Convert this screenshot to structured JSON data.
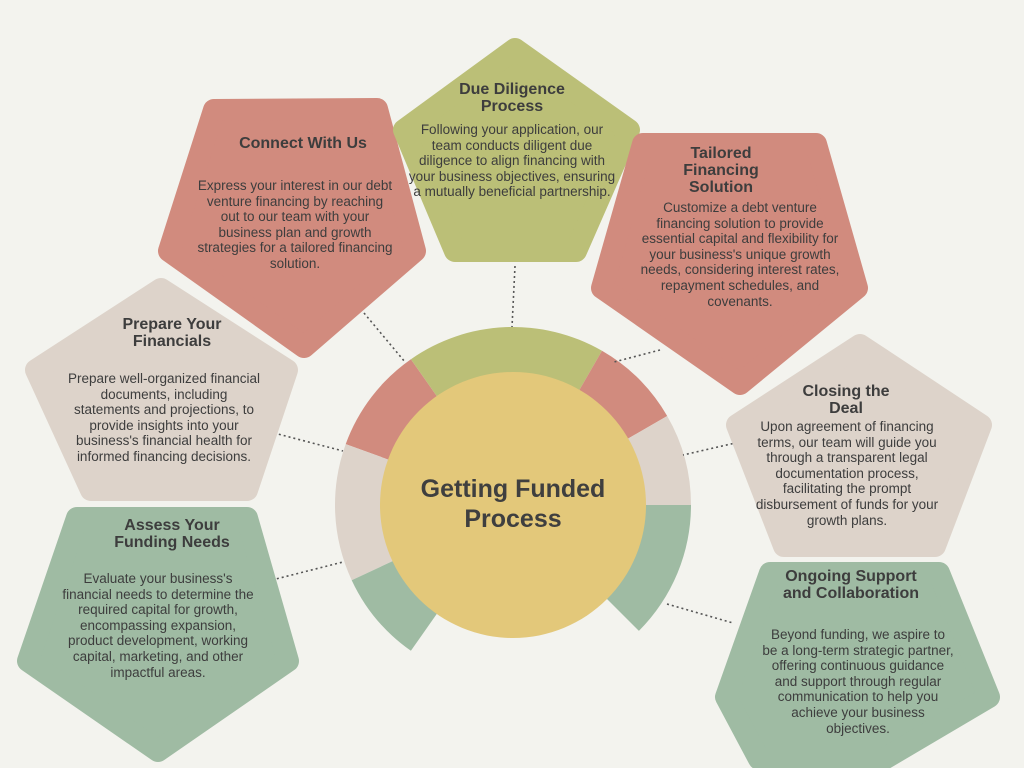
{
  "diagram": {
    "center_title": "Getting Funded Process",
    "colors": {
      "background": "#f3f3ee",
      "salmon": "#d18b7e",
      "olive": "#bbbf77",
      "beige": "#ddd3ca",
      "sage": "#9fbba3",
      "center": "#e3c87a",
      "text": "#3d3d3d"
    },
    "steps": [
      {
        "title": "Connect With Us",
        "description": "Express your interest in our debt venture financing by reaching out to our team with your business plan and growth strategies for a tailored financing solution."
      },
      {
        "title": "Due Diligence Process",
        "description": "Following your application, our team conducts diligent due diligence to align financing with your business objectives, ensuring a mutually beneficial partnership."
      },
      {
        "title": "Tailored Financing Solution",
        "description": "Customize a debt venture financing solution to provide essential capital and flexibility for your business's unique growth needs, considering interest rates, repayment schedules, and covenants."
      },
      {
        "title": "Prepare Your Financials",
        "description": "Prepare well-organized financial documents, including statements and projections, to provide insights into your business's financial health for informed financing decisions."
      },
      {
        "title": "Closing the Deal",
        "description": "Upon agreement of financing terms, our team will guide you through a transparent legal documentation process, facilitating the prompt disbursement of funds for your growth plans."
      },
      {
        "title": "Assess Your Funding Needs",
        "description": "Evaluate your business's financial needs to determine the required capital for growth, encompassing expansion, product development, working capital, marketing, and other impactful areas."
      },
      {
        "title": "Ongoing Support and Collaboration",
        "description": "Beyond funding, we aspire to be a long-term strategic partner, offering continuous guidance and support through regular communication to help you achieve your business objectives."
      }
    ]
  }
}
